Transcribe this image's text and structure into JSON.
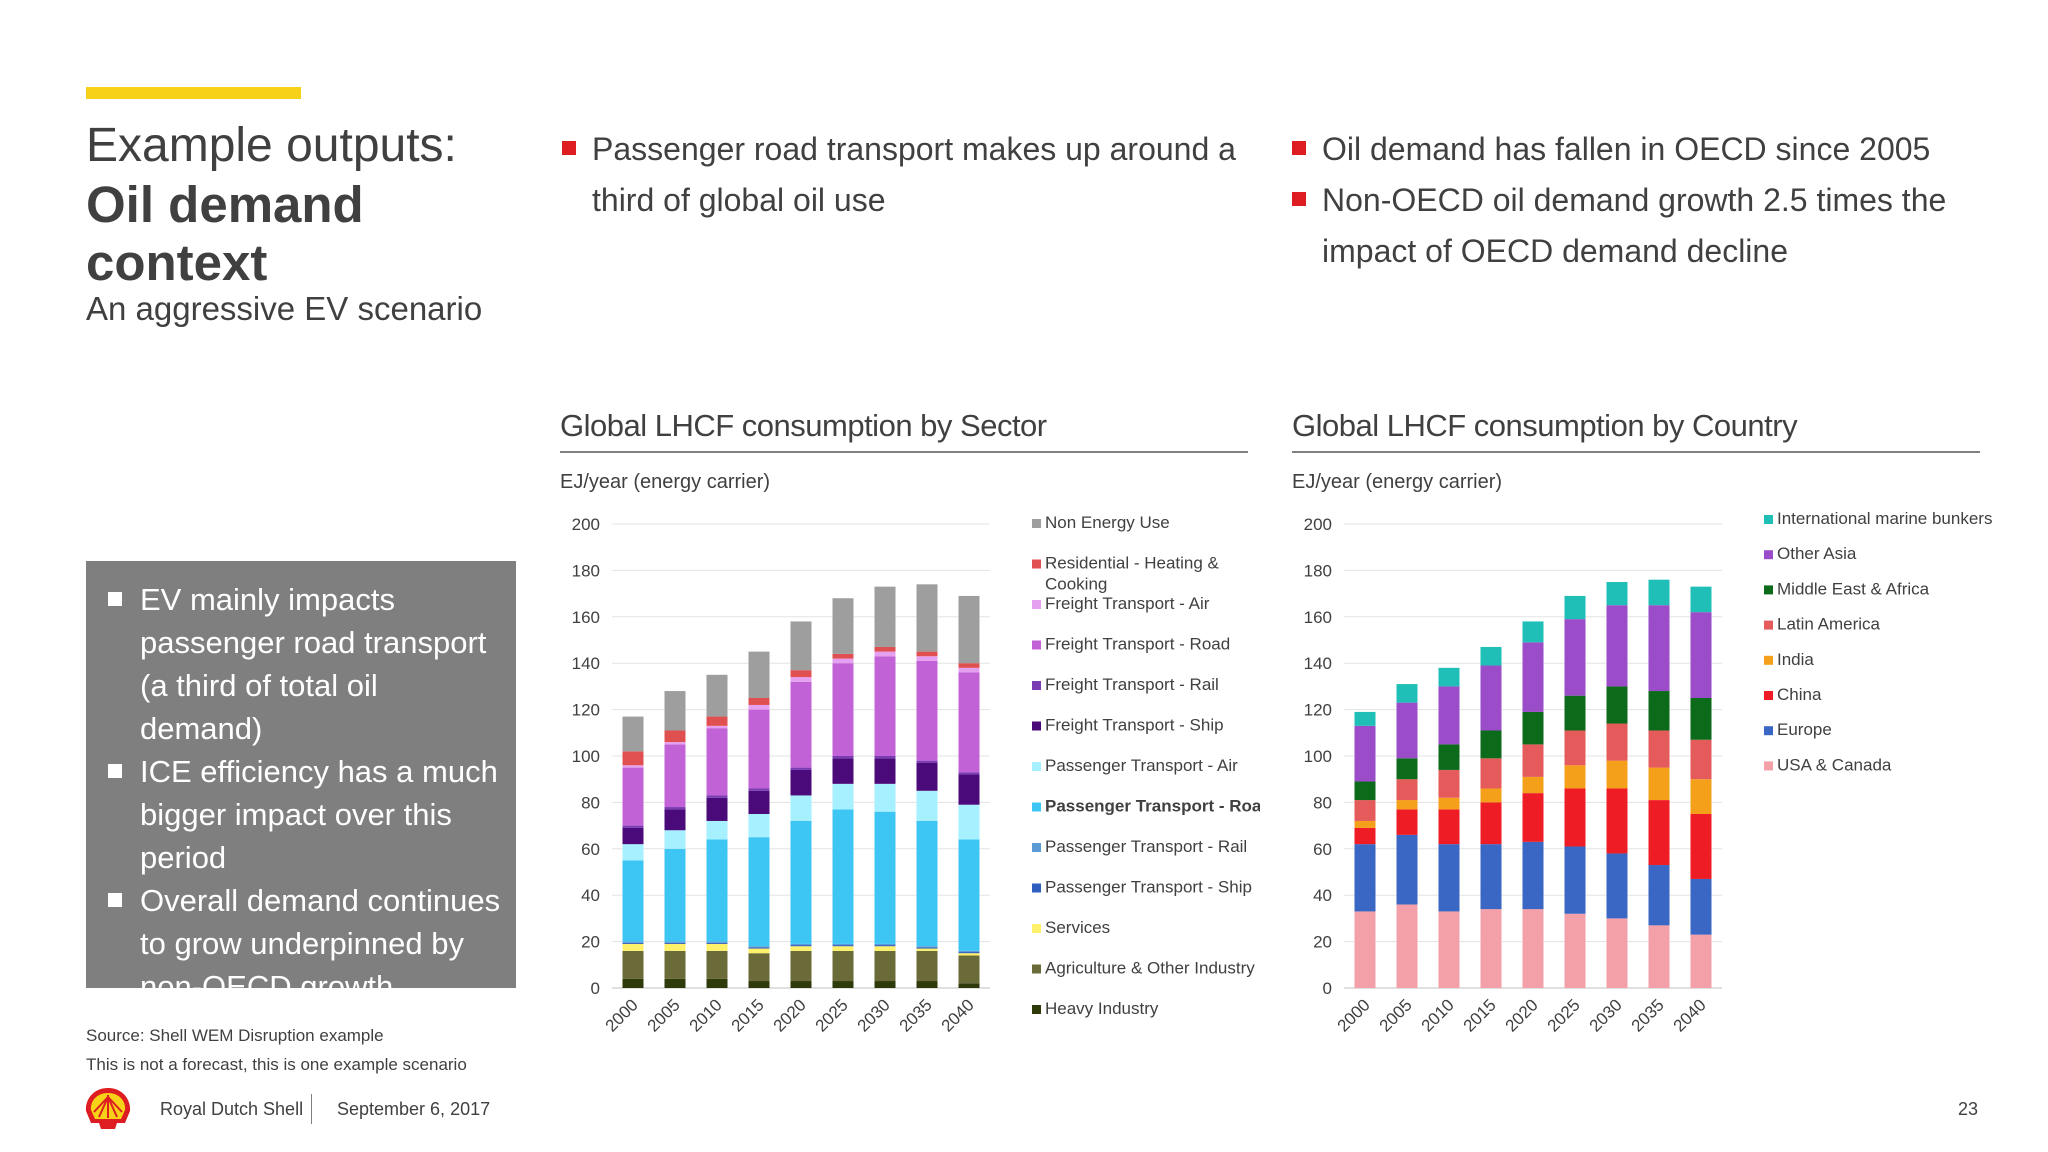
{
  "header": {
    "title_line1": "Example outputs:",
    "title_main": "Oil demand context",
    "subtitle": "An aggressive EV scenario"
  },
  "bullets_mid": [
    "Passenger road transport makes up around a third of global oil use"
  ],
  "bullets_right": [
    "Oil demand has fallen in OECD since 2005",
    "Non-OECD oil demand growth 2.5 times the impact of OECD demand decline"
  ],
  "box_bullets": [
    "EV mainly impacts passenger road transport (a third of total oil demand)",
    "ICE efficiency has a much bigger impact over this period",
    "Overall demand continues to grow underpinned by non-OECD growth"
  ],
  "source": {
    "line1": "Source: Shell WEM Disruption example",
    "line2": "This is not a forecast, this is one example scenario"
  },
  "footer": {
    "company": "Royal Dutch Shell",
    "date": "September 6, 2017",
    "page_number": "23"
  },
  "colors": {
    "accent_yellow": "#f7d117",
    "bullet_red": "#dd1d21",
    "box_grey": "#7f7f7f"
  },
  "chart_data": [
    {
      "type": "bar",
      "stacked": true,
      "title": "Global LHCF consumption by Sector",
      "ylabel": "EJ/year (energy carrier)",
      "xlabel": "",
      "ylim": [
        0,
        200
      ],
      "yticks": [
        0,
        20,
        40,
        60,
        80,
        100,
        120,
        140,
        160,
        180,
        200
      ],
      "grid": true,
      "legend_position": "right",
      "categories": [
        "2000",
        "2005",
        "2010",
        "2015",
        "2020",
        "2025",
        "2030",
        "2035",
        "2040"
      ],
      "series": [
        {
          "name": "Heavy Industry",
          "color": "#2e3a0a",
          "values": [
            4,
            4,
            4,
            3,
            3,
            3,
            3,
            3,
            2
          ]
        },
        {
          "name": "Agriculture & Other Industry",
          "color": "#6b6b3a",
          "values": [
            12,
            12,
            12,
            12,
            13,
            13,
            13,
            13,
            12
          ]
        },
        {
          "name": "Services",
          "color": "#fff26a",
          "values": [
            3,
            3,
            3,
            2,
            2,
            2,
            2,
            1,
            1
          ]
        },
        {
          "name": "Passenger Transport - Ship",
          "color": "#2f5fbf",
          "values": [
            0.5,
            0.5,
            0.5,
            0.5,
            0.5,
            0.5,
            0.5,
            0.5,
            0.5
          ]
        },
        {
          "name": "Passenger Transport - Rail",
          "color": "#5b9bd5",
          "values": [
            0.5,
            0.5,
            0.5,
            0.5,
            0.5,
            0.5,
            0.5,
            0.5,
            0.5
          ]
        },
        {
          "name": "Passenger Transport - Road",
          "color": "#3dc6f4",
          "values": [
            35,
            40,
            44,
            47,
            53,
            58,
            57,
            54,
            48
          ]
        },
        {
          "name": "Passenger Transport - Air",
          "color": "#a6f0ff",
          "values": [
            7,
            8,
            8,
            10,
            11,
            11,
            12,
            13,
            15
          ]
        },
        {
          "name": "Freight Transport - Ship",
          "color": "#4b0a7a",
          "values": [
            7,
            9,
            10,
            10,
            11,
            11,
            11,
            12,
            13
          ]
        },
        {
          "name": "Freight Transport - Rail",
          "color": "#7a3cb3",
          "values": [
            1,
            1,
            1,
            1,
            1,
            1,
            1,
            1,
            1
          ]
        },
        {
          "name": "Freight Transport - Road",
          "color": "#c163d6",
          "values": [
            25,
            27,
            29,
            34,
            37,
            40,
            43,
            43,
            43
          ]
        },
        {
          "name": "Freight Transport - Air",
          "color": "#e6a0f0",
          "values": [
            1,
            1,
            1,
            2,
            2,
            2,
            2,
            2,
            2
          ]
        },
        {
          "name": "Residential - Heating & Cooking",
          "color": "#e05050",
          "values": [
            6,
            5,
            4,
            3,
            3,
            2,
            2,
            2,
            2
          ]
        },
        {
          "name": "Non Energy Use",
          "color": "#9e9e9e",
          "values": [
            15,
            17,
            18,
            20,
            21,
            24,
            26,
            29,
            29
          ]
        }
      ]
    },
    {
      "type": "bar",
      "stacked": true,
      "title": "Global LHCF consumption by Country",
      "ylabel": "EJ/year (energy carrier)",
      "xlabel": "",
      "ylim": [
        0,
        200
      ],
      "yticks": [
        0,
        20,
        40,
        60,
        80,
        100,
        120,
        140,
        160,
        180,
        200
      ],
      "grid": true,
      "legend_position": "right",
      "categories": [
        "2000",
        "2005",
        "2010",
        "2015",
        "2020",
        "2025",
        "2030",
        "2035",
        "2040"
      ],
      "series": [
        {
          "name": "USA & Canada",
          "color": "#f4a0a8",
          "values": [
            33,
            36,
            33,
            34,
            34,
            32,
            30,
            27,
            23
          ]
        },
        {
          "name": "Europe",
          "color": "#3a66c4",
          "values": [
            29,
            30,
            29,
            28,
            29,
            29,
            28,
            26,
            24
          ]
        },
        {
          "name": "China",
          "color": "#ee1c25",
          "values": [
            7,
            11,
            15,
            18,
            21,
            25,
            28,
            28,
            28
          ]
        },
        {
          "name": "India",
          "color": "#f5a01a",
          "values": [
            3,
            4,
            5,
            6,
            7,
            10,
            12,
            14,
            15
          ]
        },
        {
          "name": "Latin America",
          "color": "#e55a5a",
          "values": [
            9,
            9,
            12,
            13,
            14,
            15,
            16,
            16,
            17
          ]
        },
        {
          "name": "Middle East & Africa",
          "color": "#0b6b1a",
          "values": [
            8,
            9,
            11,
            12,
            14,
            15,
            16,
            17,
            18
          ]
        },
        {
          "name": "Other Asia",
          "color": "#9a4cc9",
          "values": [
            24,
            24,
            25,
            28,
            30,
            33,
            35,
            37,
            37
          ]
        },
        {
          "name": "International marine bunkers",
          "color": "#1fbfb8",
          "values": [
            6,
            8,
            8,
            8,
            9,
            10,
            10,
            11,
            11
          ]
        }
      ]
    }
  ]
}
